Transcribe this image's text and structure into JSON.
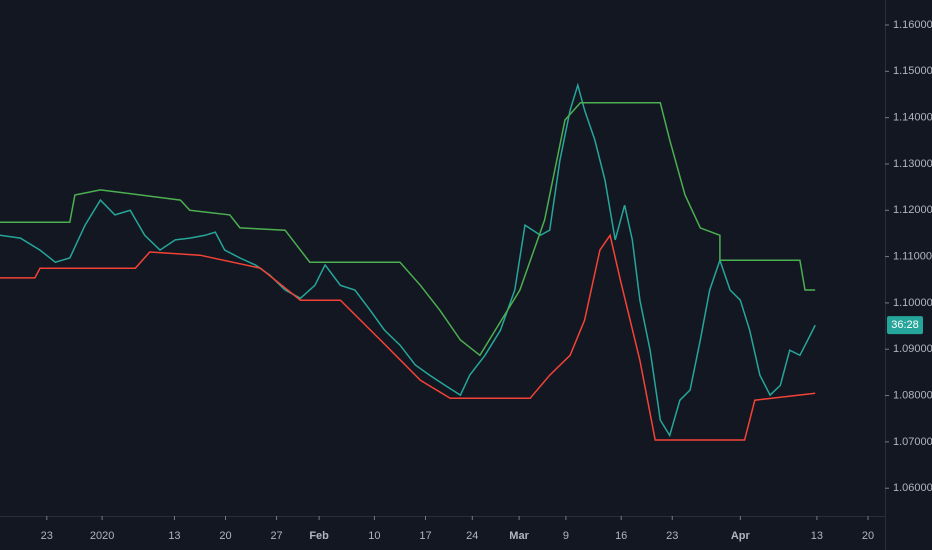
{
  "chart_data": {
    "type": "line",
    "xlim": [
      0,
      104
    ],
    "ylim": [
      1.054,
      1.1654
    ],
    "xticks": [
      {
        "value": 5.5,
        "label": "23"
      },
      {
        "value": 12,
        "label": "2020"
      },
      {
        "value": 20.5,
        "label": "13"
      },
      {
        "value": 26.5,
        "label": "20"
      },
      {
        "value": 32.5,
        "label": "27"
      },
      {
        "value": 37.5,
        "label": "Feb"
      },
      {
        "value": 44,
        "label": "10"
      },
      {
        "value": 50,
        "label": "17"
      },
      {
        "value": 55.5,
        "label": "24"
      },
      {
        "value": 61,
        "label": "Mar"
      },
      {
        "value": 66.5,
        "label": "9"
      },
      {
        "value": 73,
        "label": "16"
      },
      {
        "value": 79,
        "label": "23"
      },
      {
        "value": 87,
        "label": "Apr"
      },
      {
        "value": 96,
        "label": "13"
      },
      {
        "value": 102,
        "label": "20"
      }
    ],
    "yticks": [
      {
        "value": 1.16,
        "label": "1.160000"
      },
      {
        "value": 1.15,
        "label": "1.150000"
      },
      {
        "value": 1.14,
        "label": "1.140000"
      },
      {
        "value": 1.13,
        "label": "1.130000"
      },
      {
        "value": 1.12,
        "label": "1.120000"
      },
      {
        "value": 1.11,
        "label": "1.110000"
      },
      {
        "value": 1.1,
        "label": "1.100000"
      },
      {
        "value": 1.09,
        "label": "1.090000"
      },
      {
        "value": 1.08,
        "label": "1.080000"
      },
      {
        "value": 1.07,
        "label": "1.070000"
      },
      {
        "value": 1.06,
        "label": "1.060000"
      }
    ],
    "countdown": "36:28",
    "series": [
      {
        "color": "#26a69a",
        "x": [
          0,
          2.4,
          4.7,
          6.5,
          8.2,
          10,
          11.8,
          13.5,
          15.3,
          17,
          18.8,
          20.6,
          22.3,
          24.1,
          25.3,
          26.4,
          28.2,
          30,
          31.7,
          33.5,
          35.3,
          37,
          38.2,
          40,
          41.7,
          43.5,
          45.2,
          47,
          48.8,
          50.5,
          52.3,
          54.1,
          55.2,
          57,
          58.8,
          60.5,
          61.7,
          63.5,
          64.6,
          65.8,
          67,
          67.9,
          68.7,
          69.9,
          71.1,
          72.3,
          73.4,
          74.3,
          75.2,
          76.4,
          77.6,
          78.7,
          79.9,
          81.1,
          82.3,
          83.4,
          84.6,
          85.8,
          87,
          88.1,
          89.3,
          90.5,
          91.7,
          92.8,
          94,
          95.2,
          95.8
        ],
        "values": [
          1.1146,
          1.114,
          1.1114,
          1.1088,
          1.1097,
          1.1168,
          1.1222,
          1.119,
          1.12,
          1.1146,
          1.1114,
          1.1136,
          1.114,
          1.1146,
          1.1153,
          1.1114,
          1.1097,
          1.1082,
          1.106,
          1.1028,
          1.101,
          1.1038,
          1.1082,
          1.1038,
          1.1028,
          1.0984,
          1.0941,
          1.0909,
          1.0866,
          1.0844,
          1.0822,
          1.0801,
          1.0844,
          1.0887,
          1.0941,
          1.1028,
          1.1168,
          1.1146,
          1.1157,
          1.1308,
          1.1416,
          1.147,
          1.1416,
          1.1352,
          1.1265,
          1.1136,
          1.1211,
          1.1136,
          1.1006,
          1.0898,
          1.0747,
          1.0714,
          1.079,
          1.0812,
          1.092,
          1.1028,
          1.1092,
          1.1028,
          1.1006,
          1.0941,
          1.0844,
          1.0801,
          1.0822,
          1.0898,
          1.0887,
          1.093,
          1.0952
        ]
      },
      {
        "color": "#4caf50",
        "x": [
          0,
          8.2,
          8.8,
          11.8,
          21.2,
          22.3,
          27,
          28.2,
          33.5,
          35.3,
          36.4,
          47,
          49.4,
          51.7,
          54.1,
          56.4,
          61.1,
          64,
          66.4,
          68.2,
          77.6,
          78.7,
          80.5,
          82.3,
          84.6,
          84.6,
          94,
          94.6,
          95.8
        ],
        "values": [
          1.1174,
          1.1174,
          1.1233,
          1.1244,
          1.1222,
          1.12,
          1.119,
          1.1162,
          1.1157,
          1.1114,
          1.1088,
          1.1088,
          1.1038,
          1.0984,
          1.092,
          1.0887,
          1.1028,
          1.1179,
          1.1395,
          1.1432,
          1.1432,
          1.1352,
          1.1233,
          1.1162,
          1.1146,
          1.1092,
          1.1092,
          1.1028,
          1.1028
        ]
      },
      {
        "color": "#f44336",
        "x": [
          0,
          4.1,
          4.7,
          15.9,
          17.6,
          23.5,
          30.6,
          35.3,
          40,
          44.7,
          49.4,
          52.9,
          62.3,
          64.6,
          67,
          68.7,
          70.5,
          71.7,
          72.9,
          75.2,
          77,
          87.5,
          88.7,
          95.8
        ],
        "values": [
          1.1054,
          1.1054,
          1.1075,
          1.1075,
          1.111,
          1.1103,
          1.1075,
          1.1006,
          1.1006,
          1.092,
          1.0833,
          1.0794,
          1.0794,
          1.0844,
          1.0887,
          1.0963,
          1.1114,
          1.1146,
          1.1049,
          1.0876,
          1.0704,
          1.0704,
          1.079,
          1.0805
        ]
      }
    ]
  }
}
